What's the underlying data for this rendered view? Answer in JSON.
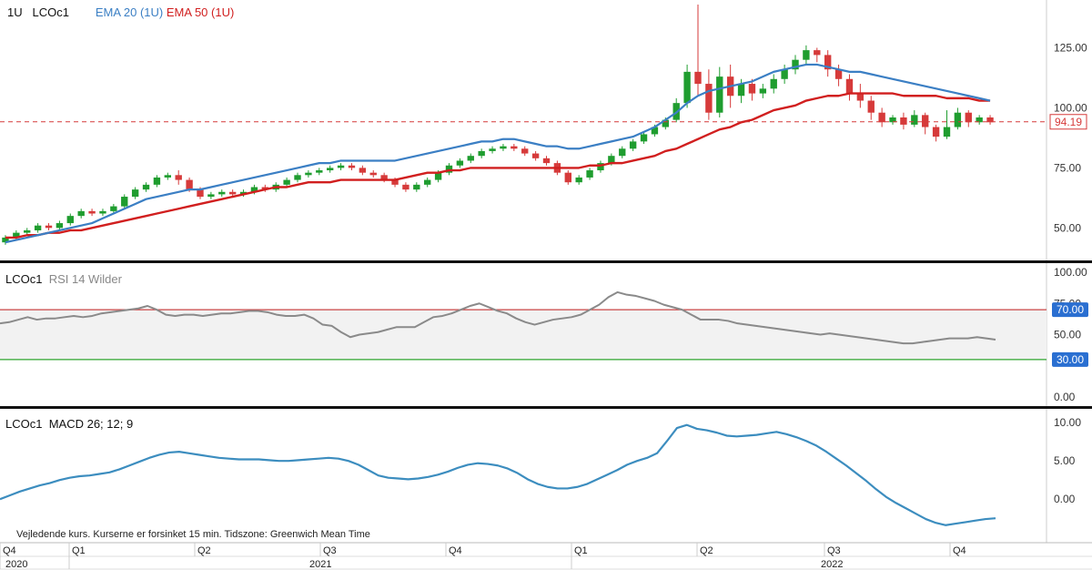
{
  "colors": {
    "up": "#1f9d2f",
    "down": "#d63a3a",
    "ema20": "#3b7fc4",
    "ema50": "#d11f1f",
    "rsi": "#8a8a8a",
    "macd": "#3c8dbf",
    "rsi_band": "#f2f2f2",
    "rsi_upper": "#c94444",
    "rsi_lower": "#2fa52f",
    "last_price_line": "#d63a3a",
    "tag_blue": "#2a6fd1"
  },
  "legend": {
    "interval": "1U",
    "symbol": "LCOc1",
    "ema20": "EMA 20  (1U)",
    "ema50": "EMA 50  (1U)"
  },
  "rsi_legend": {
    "symbol": "LCOc1",
    "name": "RSI 14 Wilder"
  },
  "macd_legend": {
    "symbol": "LCOc1",
    "name": "MACD 26; 12; 9"
  },
  "footnote": "Vejledende kurs. Kurserne er forsinket 15 min.   Tidszone: Greenwich Mean Time",
  "chart_data": [
    {
      "type": "candlestick",
      "title": "LCOc1",
      "ylim": [
        38,
        143
      ],
      "y_ticks": [
        "125.00",
        "100.00",
        "75.00",
        "50.00"
      ],
      "last_price": 94.19,
      "last_price_label": "94.19",
      "x_axis": {
        "quarters": [
          "Q4",
          "Q1",
          "Q2",
          "Q3",
          "Q4",
          "Q1",
          "Q2",
          "Q3",
          "Q4"
        ],
        "years": [
          "2020",
          "2021",
          "2022"
        ]
      },
      "series": [
        {
          "name": "EMA 20",
          "values": [
            44,
            45,
            46,
            47,
            48,
            49,
            50,
            51,
            52,
            54,
            56,
            58,
            60,
            62,
            63,
            64,
            65,
            66,
            66,
            67,
            68,
            69,
            70,
            71,
            72,
            73,
            74,
            75,
            76,
            77,
            77,
            78,
            78,
            78,
            78,
            78,
            78,
            79,
            80,
            81,
            82,
            83,
            84,
            85,
            86,
            86,
            87,
            87,
            86,
            85,
            84,
            84,
            83,
            83,
            84,
            85,
            86,
            87,
            88,
            90,
            92,
            95,
            98,
            102,
            105,
            107,
            108,
            109,
            110,
            111,
            113,
            115,
            116,
            117,
            118,
            118,
            117,
            116,
            115,
            115,
            114,
            113,
            112,
            111,
            110,
            109,
            108,
            107,
            106,
            105,
            104,
            103
          ]
        },
        {
          "name": "EMA 50",
          "values": [
            46,
            46,
            47,
            47,
            48,
            48,
            49,
            49,
            50,
            51,
            52,
            53,
            54,
            55,
            56,
            57,
            58,
            59,
            60,
            61,
            62,
            63,
            64,
            65,
            66,
            67,
            67,
            68,
            69,
            69,
            69,
            70,
            70,
            70,
            70,
            70,
            70,
            71,
            72,
            73,
            73,
            74,
            74,
            75,
            75,
            75,
            75,
            75,
            75,
            75,
            75,
            75,
            75,
            75,
            76,
            76,
            77,
            77,
            78,
            79,
            80,
            82,
            83,
            85,
            87,
            89,
            91,
            92,
            94,
            95,
            97,
            99,
            100,
            101,
            103,
            104,
            105,
            105,
            106,
            106,
            106,
            106,
            106,
            105,
            105,
            105,
            105,
            104,
            104,
            104,
            103,
            103
          ]
        }
      ],
      "candles": [
        [
          44,
          46,
          43,
          47
        ],
        [
          46,
          48,
          45,
          49
        ],
        [
          48,
          49,
          47,
          50
        ],
        [
          49,
          51,
          48,
          52
        ],
        [
          51,
          50,
          49,
          52
        ],
        [
          50,
          52,
          49,
          53
        ],
        [
          52,
          55,
          51,
          56
        ],
        [
          55,
          57,
          54,
          58
        ],
        [
          57,
          56,
          55,
          58
        ],
        [
          56,
          57,
          55,
          58
        ],
        [
          57,
          59,
          56,
          60
        ],
        [
          59,
          63,
          58,
          64
        ],
        [
          63,
          66,
          62,
          67
        ],
        [
          66,
          68,
          65,
          69
        ],
        [
          68,
          71,
          67,
          72
        ],
        [
          71,
          72,
          70,
          73
        ],
        [
          72,
          70,
          68,
          74
        ],
        [
          70,
          66,
          65,
          71
        ],
        [
          66,
          63,
          62,
          67
        ],
        [
          63,
          64,
          62,
          65
        ],
        [
          64,
          65,
          63,
          66
        ],
        [
          65,
          64,
          63,
          66
        ],
        [
          64,
          65,
          63,
          66
        ],
        [
          65,
          67,
          64,
          68
        ],
        [
          67,
          66,
          65,
          68
        ],
        [
          66,
          68,
          65,
          69
        ],
        [
          68,
          70,
          67,
          71
        ],
        [
          70,
          72,
          69,
          73
        ],
        [
          72,
          73,
          71,
          74
        ],
        [
          73,
          74,
          72,
          75
        ],
        [
          74,
          75,
          73,
          76
        ],
        [
          75,
          76,
          74,
          77
        ],
        [
          76,
          75,
          74,
          77
        ],
        [
          75,
          73,
          72,
          76
        ],
        [
          73,
          72,
          71,
          74
        ],
        [
          72,
          70,
          69,
          73
        ],
        [
          70,
          68,
          67,
          71
        ],
        [
          68,
          66,
          65,
          69
        ],
        [
          66,
          68,
          65,
          69
        ],
        [
          68,
          70,
          67,
          71
        ],
        [
          70,
          73,
          69,
          74
        ],
        [
          73,
          76,
          72,
          77
        ],
        [
          76,
          78,
          75,
          79
        ],
        [
          78,
          80,
          77,
          81
        ],
        [
          80,
          82,
          79,
          83
        ],
        [
          82,
          83,
          81,
          84
        ],
        [
          83,
          84,
          82,
          85
        ],
        [
          84,
          83,
          82,
          85
        ],
        [
          83,
          81,
          80,
          84
        ],
        [
          81,
          79,
          78,
          82
        ],
        [
          79,
          77,
          76,
          80
        ],
        [
          77,
          73,
          72,
          78
        ],
        [
          73,
          69,
          68,
          74
        ],
        [
          69,
          71,
          68,
          72
        ],
        [
          71,
          74,
          70,
          75
        ],
        [
          74,
          77,
          73,
          78
        ],
        [
          77,
          80,
          76,
          81
        ],
        [
          80,
          83,
          79,
          84
        ],
        [
          83,
          86,
          82,
          87
        ],
        [
          86,
          89,
          85,
          90
        ],
        [
          89,
          92,
          88,
          93
        ],
        [
          92,
          95,
          91,
          96
        ],
        [
          95,
          102,
          94,
          104
        ],
        [
          102,
          115,
          100,
          118
        ],
        [
          115,
          110,
          105,
          143
        ],
        [
          110,
          98,
          95,
          116
        ],
        [
          98,
          113,
          96,
          117
        ],
        [
          113,
          105,
          100,
          118
        ],
        [
          105,
          110,
          102,
          112
        ],
        [
          110,
          106,
          103,
          112
        ],
        [
          106,
          108,
          104,
          110
        ],
        [
          108,
          112,
          106,
          114
        ],
        [
          112,
          116,
          110,
          118
        ],
        [
          116,
          120,
          114,
          122
        ],
        [
          120,
          124,
          118,
          126
        ],
        [
          124,
          122,
          119,
          125
        ],
        [
          122,
          116,
          113,
          124
        ],
        [
          116,
          112,
          109,
          118
        ],
        [
          112,
          106,
          103,
          114
        ],
        [
          106,
          103,
          100,
          110
        ],
        [
          103,
          98,
          95,
          105
        ],
        [
          98,
          94,
          92,
          100
        ],
        [
          94,
          96,
          93,
          97
        ],
        [
          96,
          93,
          91,
          98
        ],
        [
          93,
          97,
          92,
          99
        ],
        [
          97,
          92,
          89,
          98
        ],
        [
          92,
          88,
          86,
          93
        ],
        [
          88,
          92,
          87,
          99
        ],
        [
          92,
          98,
          91,
          100
        ],
        [
          98,
          94,
          92,
          99
        ],
        [
          94,
          96,
          93,
          97
        ],
        [
          96,
          94,
          93,
          97
        ]
      ]
    },
    {
      "type": "line",
      "title": "RSI 14 Wilder",
      "ylim": [
        0,
        100
      ],
      "y_ticks": [
        "100.00",
        "75.00",
        "50.00",
        "0.00"
      ],
      "upper_label": "70.00",
      "lower_label": "30.00",
      "upper": 70,
      "lower": 30,
      "series": [
        {
          "name": "RSI 14 Wilder",
          "values": [
            59,
            60,
            62,
            64,
            62,
            63,
            63,
            64,
            65,
            64,
            65,
            67,
            68,
            69,
            70,
            71,
            73,
            70,
            66,
            65,
            66,
            66,
            65,
            66,
            67,
            67,
            68,
            69,
            69,
            68,
            66,
            65,
            65,
            66,
            63,
            58,
            57,
            52,
            48,
            50,
            51,
            52,
            54,
            56,
            56,
            56,
            60,
            64,
            65,
            67,
            70,
            73,
            75,
            72,
            69,
            67,
            63,
            60,
            58,
            60,
            62,
            63,
            64,
            66,
            70,
            74,
            80,
            84,
            82,
            81,
            79,
            77,
            74,
            72,
            70,
            66,
            62,
            62,
            62,
            61,
            59,
            58,
            57,
            56,
            55,
            54,
            53,
            52,
            51,
            50,
            51,
            50,
            49,
            48,
            47,
            46,
            45,
            44,
            43,
            43,
            44,
            45,
            46,
            47,
            47,
            47,
            48,
            47,
            46
          ]
        }
      ]
    },
    {
      "type": "line",
      "title": "MACD 26; 12; 9",
      "ylim": [
        -4.5,
        10.5
      ],
      "y_ticks": [
        "10.00",
        "5.00",
        "0.00"
      ],
      "series": [
        {
          "name": "MACD",
          "values": [
            0,
            0.5,
            1,
            1.4,
            1.8,
            2.1,
            2.5,
            2.8,
            3.0,
            3.1,
            3.3,
            3.5,
            3.9,
            4.4,
            4.9,
            5.4,
            5.8,
            6.1,
            6.2,
            6.0,
            5.8,
            5.6,
            5.4,
            5.3,
            5.2,
            5.2,
            5.2,
            5.1,
            5.0,
            5.0,
            5.1,
            5.2,
            5.3,
            5.4,
            5.3,
            5.0,
            4.5,
            3.8,
            3.1,
            2.8,
            2.7,
            2.6,
            2.7,
            2.9,
            3.2,
            3.6,
            4.1,
            4.5,
            4.7,
            4.6,
            4.4,
            4.0,
            3.4,
            2.6,
            2.0,
            1.6,
            1.4,
            1.4,
            1.6,
            2.0,
            2.6,
            3.2,
            3.8,
            4.5,
            5.0,
            5.4,
            6.0,
            7.6,
            9.3,
            9.7,
            9.2,
            9.0,
            8.7,
            8.3,
            8.2,
            8.3,
            8.4,
            8.6,
            8.8,
            8.5,
            8.1,
            7.6,
            7.0,
            6.2,
            5.3,
            4.4,
            3.4,
            2.4,
            1.3,
            0.3,
            -0.5,
            -1.2,
            -1.9,
            -2.6,
            -3.1,
            -3.4,
            -3.2,
            -3.0,
            -2.8,
            -2.6,
            -2.5
          ]
        }
      ]
    }
  ]
}
